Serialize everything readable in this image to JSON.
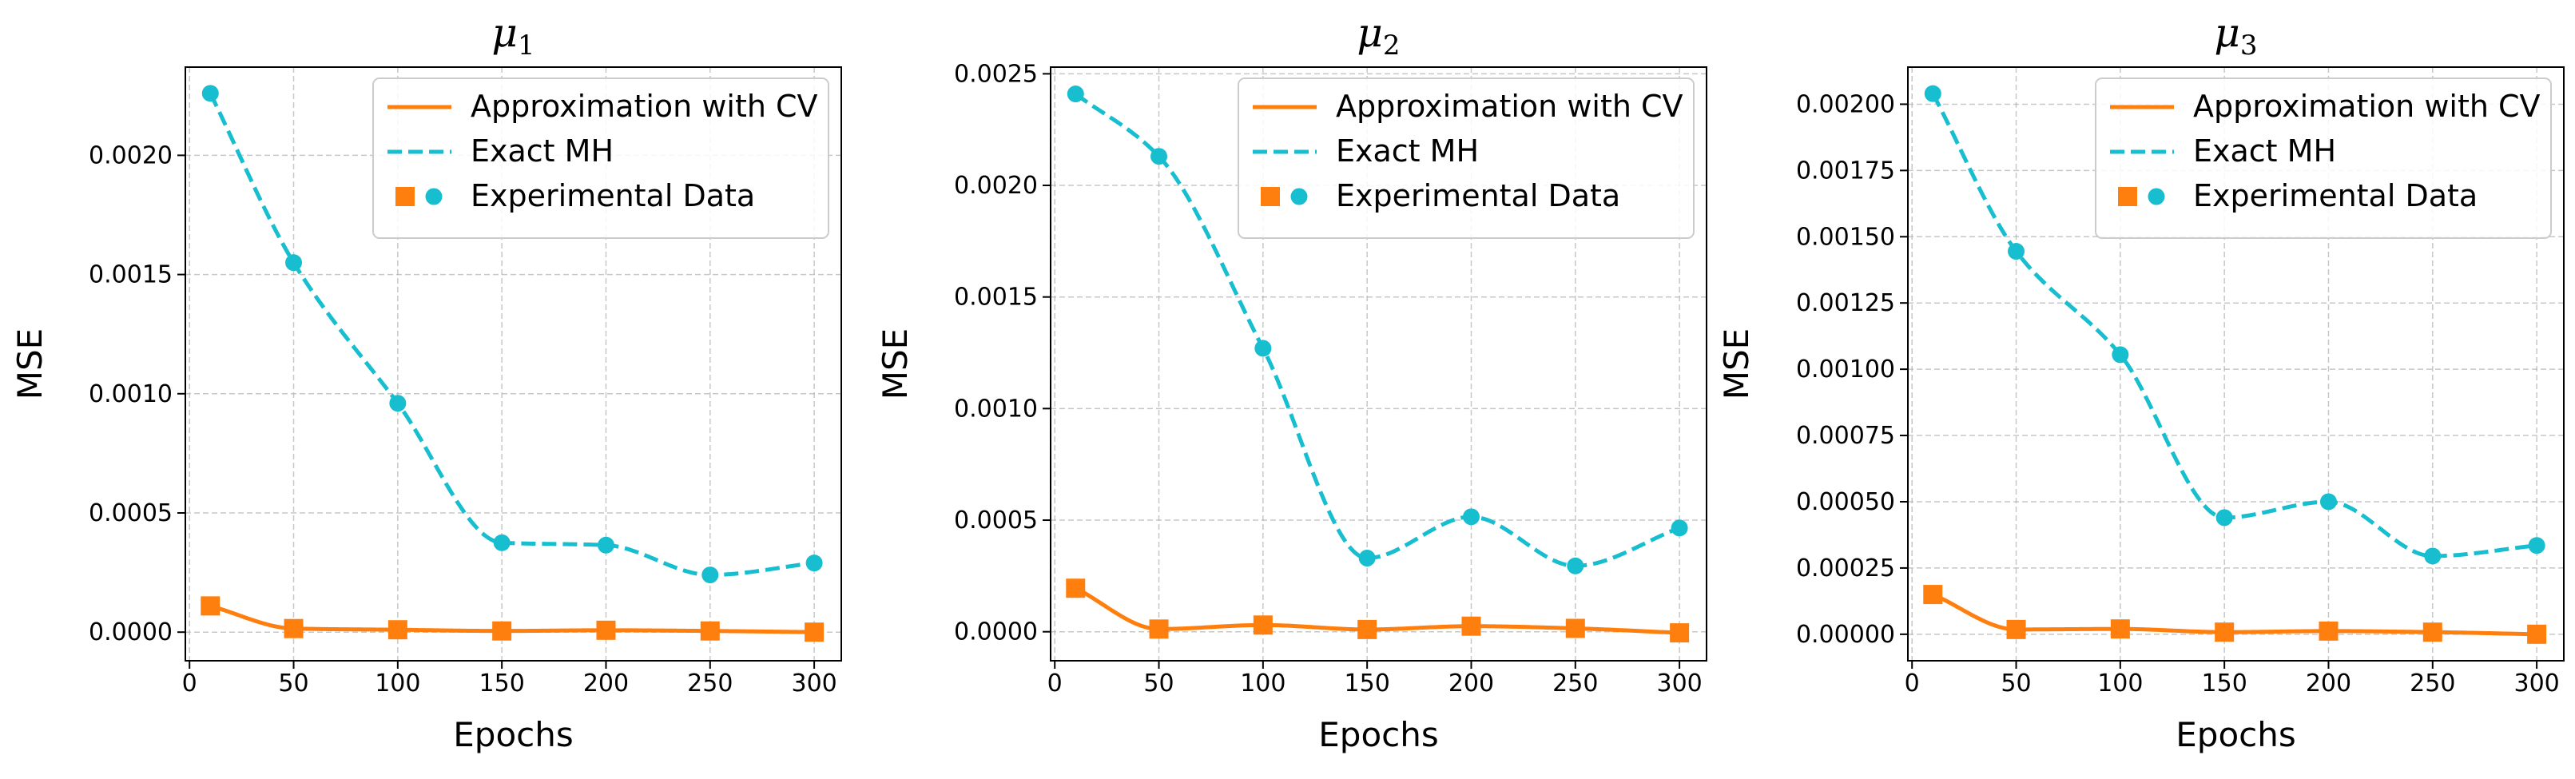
{
  "chart_data": [
    {
      "type": "line",
      "title": "μ1",
      "title_symbol": "μ",
      "title_subscript": "1",
      "xlabel": "Epochs",
      "ylabel": "MSE",
      "xlim": [
        -2,
        313
      ],
      "ylim": [
        -0.00012,
        0.00237
      ],
      "xticks": [
        0,
        50,
        100,
        150,
        200,
        250,
        300
      ],
      "xtick_labels": [
        "0",
        "50",
        "100",
        "150",
        "200",
        "250",
        "300"
      ],
      "yticks": [
        0,
        0.0005,
        0.001,
        0.0015,
        0.002
      ],
      "ytick_labels": [
        "0.0000",
        "0.0005",
        "0.0010",
        "0.0015",
        "0.0020"
      ],
      "grid": true,
      "legend_position": "top-right",
      "x": [
        10,
        50,
        100,
        150,
        200,
        250,
        300
      ],
      "series": [
        {
          "name": "Approximation with CV",
          "style": "solid",
          "marker": "square",
          "color": "#ff7f0e",
          "values": [
            0.00011,
            1.5e-05,
            1e-05,
            5e-06,
            8e-06,
            5e-06,
            0.0
          ]
        },
        {
          "name": "Exact MH",
          "style": "dashed",
          "marker": "circle",
          "color": "#17becf",
          "values": [
            0.00226,
            0.00155,
            0.00096,
            0.000375,
            0.000365,
            0.00024,
            0.00029
          ]
        }
      ],
      "legend": {
        "entries": [
          "Approximation with CV",
          "Exact MH",
          "Experimental Data"
        ]
      }
    },
    {
      "type": "line",
      "title": "μ2",
      "title_symbol": "μ",
      "title_subscript": "2",
      "xlabel": "Epochs",
      "ylabel": "MSE",
      "xlim": [
        -2,
        313
      ],
      "ylim": [
        -0.00013,
        0.00253
      ],
      "xticks": [
        0,
        50,
        100,
        150,
        200,
        250,
        300
      ],
      "xtick_labels": [
        "0",
        "50",
        "100",
        "150",
        "200",
        "250",
        "300"
      ],
      "yticks": [
        0,
        0.0005,
        0.001,
        0.0015,
        0.002,
        0.0025
      ],
      "ytick_labels": [
        "0.0000",
        "0.0005",
        "0.0010",
        "0.0015",
        "0.0020",
        "0.0025"
      ],
      "grid": true,
      "legend_position": "top-right",
      "x": [
        10,
        50,
        100,
        150,
        200,
        250,
        300
      ],
      "series": [
        {
          "name": "Approximation with CV",
          "style": "solid",
          "marker": "square",
          "color": "#ff7f0e",
          "values": [
            0.000195,
            1.2e-05,
            3e-05,
            1e-05,
            2.5e-05,
            1.5e-05,
            -5e-06
          ]
        },
        {
          "name": "Exact MH",
          "style": "dashed",
          "marker": "circle",
          "color": "#17becf",
          "values": [
            0.00241,
            0.00213,
            0.00127,
            0.00033,
            0.000515,
            0.000295,
            0.000465
          ]
        }
      ],
      "legend": {
        "entries": [
          "Approximation with CV",
          "Exact MH",
          "Experimental Data"
        ]
      }
    },
    {
      "type": "line",
      "title": "μ3",
      "title_symbol": "μ",
      "title_subscript": "3",
      "xlabel": "Epochs",
      "ylabel": "MSE",
      "xlim": [
        -2,
        313
      ],
      "ylim": [
        -0.0001,
        0.00214
      ],
      "xticks": [
        0,
        50,
        100,
        150,
        200,
        250,
        300
      ],
      "xtick_labels": [
        "0",
        "50",
        "100",
        "150",
        "200",
        "250",
        "300"
      ],
      "yticks": [
        0,
        0.00025,
        0.0005,
        0.00075,
        0.001,
        0.00125,
        0.0015,
        0.00175,
        0.002
      ],
      "ytick_labels": [
        "0.00000",
        "0.00025",
        "0.00050",
        "0.00075",
        "0.00100",
        "0.00125",
        "0.00150",
        "0.00175",
        "0.00200"
      ],
      "grid": true,
      "legend_position": "top-right",
      "x": [
        10,
        50,
        100,
        150,
        200,
        250,
        300
      ],
      "series": [
        {
          "name": "Approximation with CV",
          "style": "solid",
          "marker": "square",
          "color": "#ff7f0e",
          "values": [
            0.00015,
            1.8e-05,
            2e-05,
            8e-06,
            1.2e-05,
            8e-06,
            0.0
          ]
        },
        {
          "name": "Exact MH",
          "style": "dashed",
          "marker": "circle",
          "color": "#17becf",
          "values": [
            0.00204,
            0.001445,
            0.001055,
            0.00044,
            0.0005,
            0.000295,
            0.000335
          ]
        }
      ],
      "legend": {
        "entries": [
          "Approximation with CV",
          "Exact MH",
          "Experimental Data"
        ]
      }
    }
  ]
}
